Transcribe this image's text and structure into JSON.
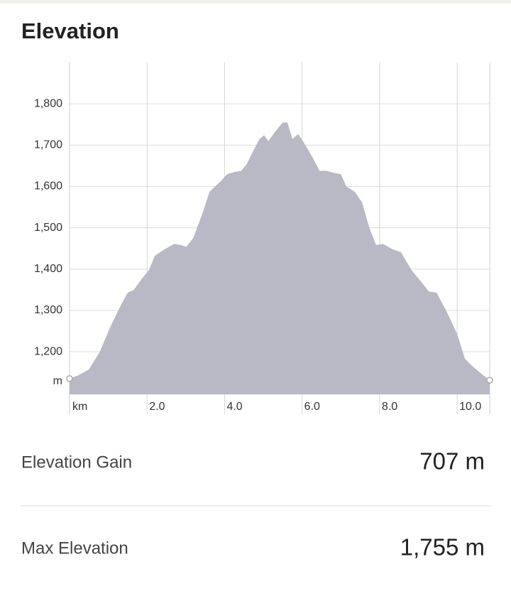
{
  "header": {
    "title": "Elevation"
  },
  "chart_data": {
    "type": "area",
    "x_label": "km",
    "y_label": "m",
    "color": "#b9b9c5",
    "grid": true,
    "x": [
      0,
      0.23,
      0.5,
      0.78,
      1.05,
      1.32,
      1.5,
      1.65,
      1.87,
      2.05,
      2.2,
      2.42,
      2.7,
      2.88,
      3.01,
      3.19,
      3.43,
      3.61,
      3.89,
      4.07,
      4.25,
      4.43,
      4.58,
      4.71,
      4.9,
      5.02,
      5.13,
      5.31,
      5.5,
      5.62,
      5.75,
      5.9,
      6.04,
      6.26,
      6.45,
      6.63,
      6.81,
      7.0,
      7.14,
      7.36,
      7.55,
      7.73,
      7.91,
      8.09,
      8.31,
      8.55,
      8.82,
      9.09,
      9.27,
      9.47,
      9.74,
      10.0,
      10.2,
      10.38,
      10.65,
      10.84
    ],
    "values": [
      1135,
      1143,
      1157,
      1200,
      1260,
      1312,
      1343,
      1349,
      1377,
      1398,
      1432,
      1446,
      1461,
      1458,
      1454,
      1475,
      1535,
      1587,
      1612,
      1630,
      1635,
      1638,
      1655,
      1681,
      1715,
      1724,
      1710,
      1733,
      1755,
      1755,
      1715,
      1727,
      1707,
      1672,
      1638,
      1638,
      1633,
      1630,
      1600,
      1587,
      1561,
      1501,
      1458,
      1461,
      1449,
      1441,
      1398,
      1367,
      1346,
      1343,
      1295,
      1243,
      1183,
      1166,
      1145,
      1131
    ],
    "xlim": [
      0,
      10.84
    ],
    "ylim": [
      1097,
      1900
    ],
    "xticks": [
      {
        "value": 2,
        "label": "2.0"
      },
      {
        "value": 4,
        "label": "4.0"
      },
      {
        "value": 6,
        "label": "6.0"
      },
      {
        "value": 8,
        "label": "8.0"
      },
      {
        "value": 10,
        "label": "10.0"
      }
    ],
    "yticks": [
      {
        "value": 1200,
        "label": "1,200"
      },
      {
        "value": 1300,
        "label": "1,300"
      },
      {
        "value": 1400,
        "label": "1,400"
      },
      {
        "value": 1500,
        "label": "1,500"
      },
      {
        "value": 1600,
        "label": "1,600"
      },
      {
        "value": 1700,
        "label": "1,700"
      },
      {
        "value": 1800,
        "label": "1,800"
      }
    ]
  },
  "stats": [
    {
      "label": "Elevation Gain",
      "value": "707 m"
    },
    {
      "label": "Max Elevation",
      "value": "1,755 m"
    }
  ]
}
